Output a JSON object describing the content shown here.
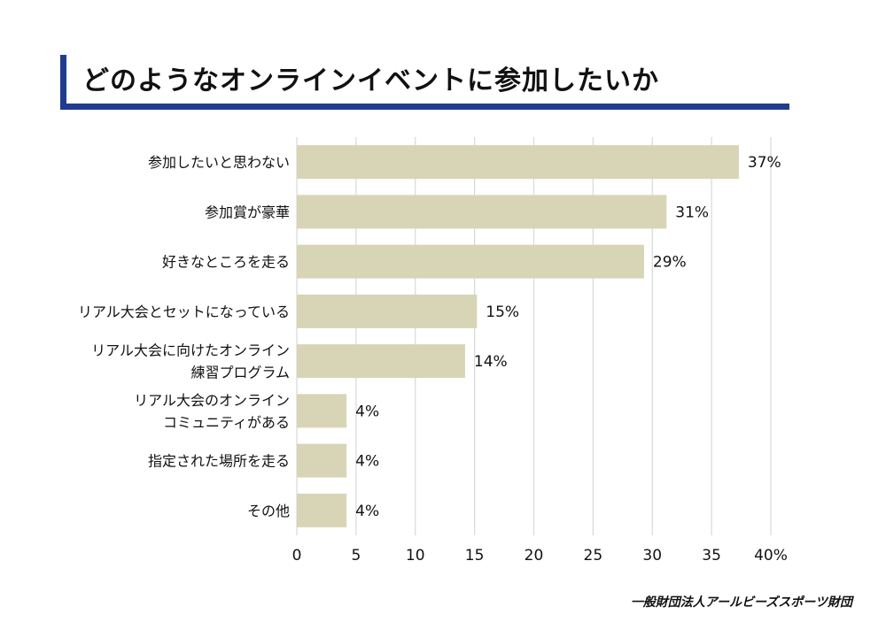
{
  "title": "どのようなオンラインイベントに参加したいか",
  "footer": "一般財団法人アールビーズスポーツ財団",
  "colors": {
    "bar": "#d8d4b6",
    "grid": "#d9d9d9",
    "accent": "#1f3c8f"
  },
  "chart_data": {
    "type": "bar",
    "orientation": "horizontal",
    "categories": [
      [
        "参加したいと思わない"
      ],
      [
        "参加賞が豪華"
      ],
      [
        "好きなところを走る"
      ],
      [
        "リアル大会とセットになっている"
      ],
      [
        "リアル大会に向けたオンライン",
        "練習プログラム"
      ],
      [
        "リアル大会のオンライン",
        "コミュニティがある"
      ],
      [
        "指定された場所を走る"
      ],
      [
        "その他"
      ]
    ],
    "values": [
      37.3,
      31.2,
      29.3,
      15.2,
      14.2,
      4.2,
      4.2,
      4.2
    ],
    "data_labels": [
      "37%",
      "31%",
      "29%",
      "15%",
      "14%",
      "4%",
      "4%",
      "4%"
    ],
    "xlim": [
      0,
      40
    ],
    "xticks": [
      0,
      5,
      10,
      15,
      20,
      25,
      30,
      35,
      40
    ],
    "xtick_labels": [
      "0",
      "5",
      "10",
      "15",
      "20",
      "25",
      "30",
      "35",
      "40%"
    ],
    "grid": true,
    "xlabel": "",
    "ylabel": ""
  }
}
